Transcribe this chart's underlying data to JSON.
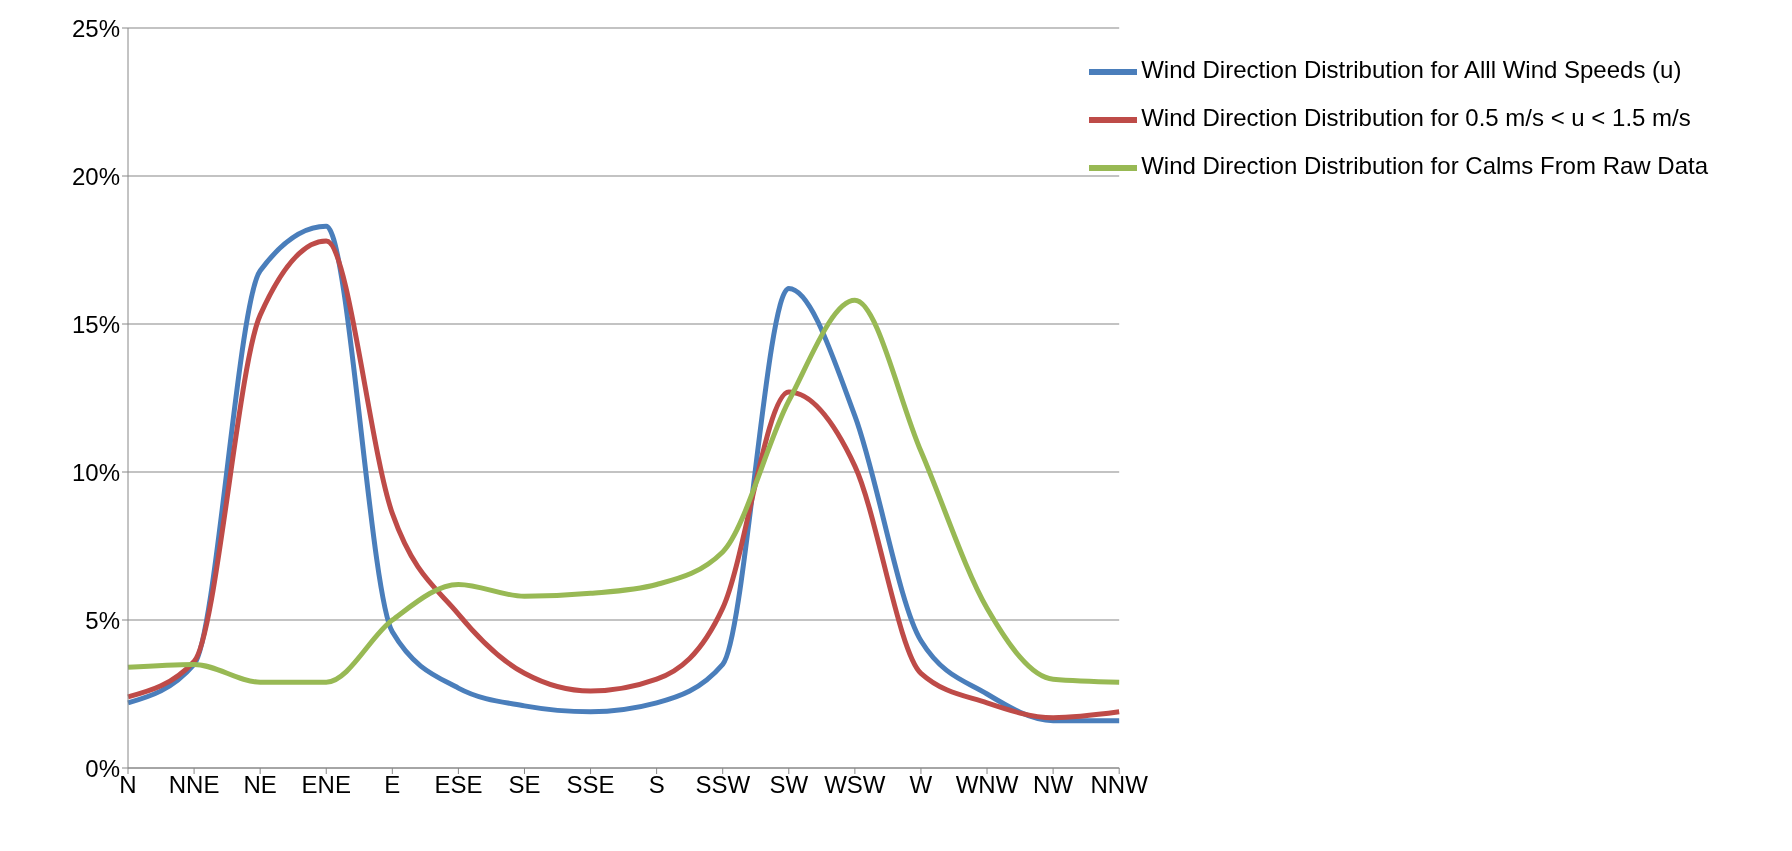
{
  "chart_data": {
    "type": "line",
    "categories": [
      "N",
      "NNE",
      "NE",
      "ENE",
      "E",
      "ESE",
      "SE",
      "SSE",
      "S",
      "SSW",
      "SW",
      "WSW",
      "W",
      "WNW",
      "NW",
      "NNW"
    ],
    "series": [
      {
        "name": "Wind Direction Distribution for  Alll Wind Speeds (u)",
        "color": "#4a7ebb",
        "values": [
          2.2,
          3.5,
          16.8,
          18.3,
          4.6,
          2.7,
          2.1,
          1.9,
          2.2,
          3.5,
          16.2,
          11.9,
          4.3,
          2.5,
          1.6,
          1.6
        ]
      },
      {
        "name": "Wind Direction Distribution for 0.5 m/s < u < 1.5 m/s",
        "color": "#be4b48",
        "values": [
          2.4,
          3.6,
          15.3,
          17.8,
          8.6,
          5.2,
          3.2,
          2.6,
          3.0,
          5.4,
          12.7,
          10.2,
          3.2,
          2.2,
          1.7,
          1.9
        ]
      },
      {
        "name": "Wind Direction Distribution for Calms From Raw Data",
        "color": "#98b954",
        "values": [
          3.4,
          3.5,
          2.9,
          2.9,
          5.0,
          6.2,
          5.8,
          5.9,
          6.2,
          7.3,
          12.4,
          15.8,
          10.7,
          5.4,
          3.0,
          2.9
        ]
      }
    ],
    "ylim": [
      0,
      25
    ],
    "yticks": [
      {
        "value": 0,
        "label": "0%"
      },
      {
        "value": 5,
        "label": "5%"
      },
      {
        "value": 10,
        "label": "10%"
      },
      {
        "value": 15,
        "label": "15%"
      },
      {
        "value": 20,
        "label": "20%"
      },
      {
        "value": 25,
        "label": "25%"
      }
    ],
    "grid": "y",
    "legend": "top right",
    "marker": "none",
    "line_style": "solid"
  }
}
